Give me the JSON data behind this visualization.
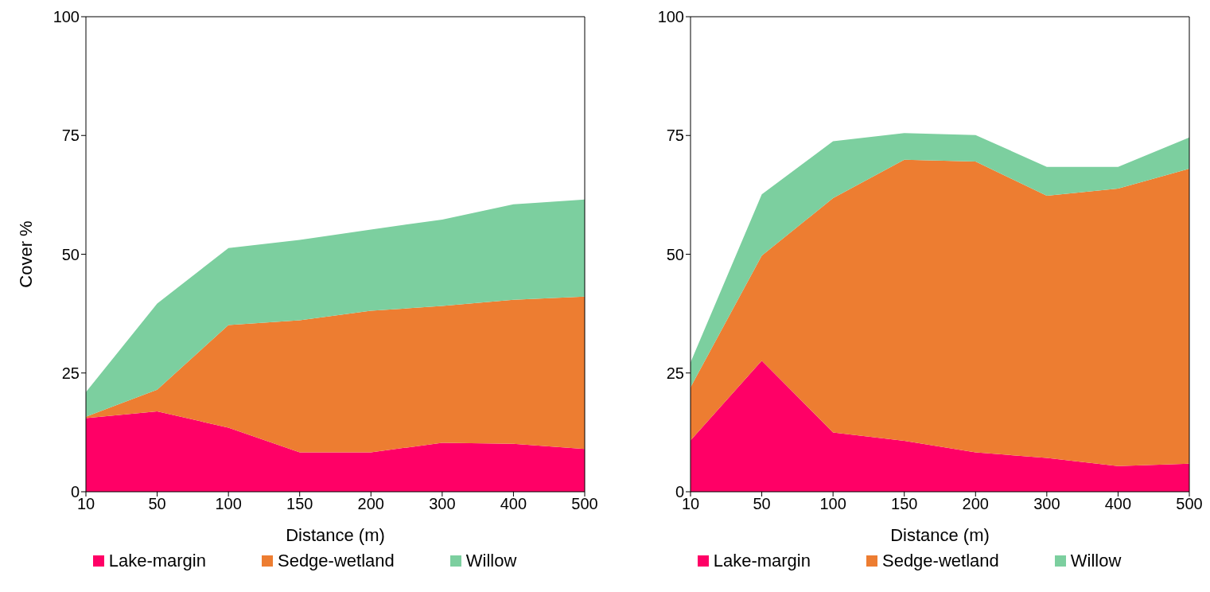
{
  "chart_data": [
    {
      "type": "area",
      "stacked": true,
      "xlabel": "Distance (m)",
      "ylabel": "Cover %",
      "categories": [
        "10",
        "50",
        "100",
        "150",
        "200",
        "300",
        "400",
        "500"
      ],
      "ylim": [
        0,
        100
      ],
      "yticks": [
        0,
        25,
        50,
        75,
        100
      ],
      "legend": "bottom",
      "series": [
        {
          "name": "Lake-margin",
          "color": "#ff0066",
          "values": [
            15.5,
            16.9,
            13.5,
            8.3,
            8.3,
            10.3,
            10.1,
            9.0
          ]
        },
        {
          "name": "Sedge-wetland",
          "color": "#ed7d31",
          "values": [
            0.3,
            4.6,
            21.6,
            27.8,
            29.8,
            28.8,
            30.3,
            32.1
          ]
        },
        {
          "name": "Willow",
          "color": "#7ccf9f",
          "values": [
            5.2,
            18.1,
            16.2,
            16.9,
            17.1,
            18.2,
            20.1,
            20.4
          ]
        }
      ]
    },
    {
      "type": "area",
      "stacked": true,
      "xlabel": "Distance (m)",
      "categories": [
        "10",
        "50",
        "100",
        "150",
        "200",
        "300",
        "400",
        "500"
      ],
      "ylim": [
        0,
        100
      ],
      "yticks": [
        0,
        25,
        50,
        75,
        100
      ],
      "legend": "bottom",
      "series": [
        {
          "name": "Lake-margin",
          "color": "#ff0066",
          "values": [
            10.8,
            27.6,
            12.5,
            10.7,
            8.3,
            7.1,
            5.4,
            5.9
          ]
        },
        {
          "name": "Sedge-wetland",
          "color": "#ed7d31",
          "values": [
            11.2,
            22.1,
            49.3,
            59.2,
            61.2,
            55.2,
            58.4,
            62.1
          ]
        },
        {
          "name": "Willow",
          "color": "#7ccf9f",
          "values": [
            5.2,
            12.9,
            12.0,
            5.6,
            5.6,
            6.1,
            4.6,
            6.6
          ]
        }
      ]
    }
  ]
}
